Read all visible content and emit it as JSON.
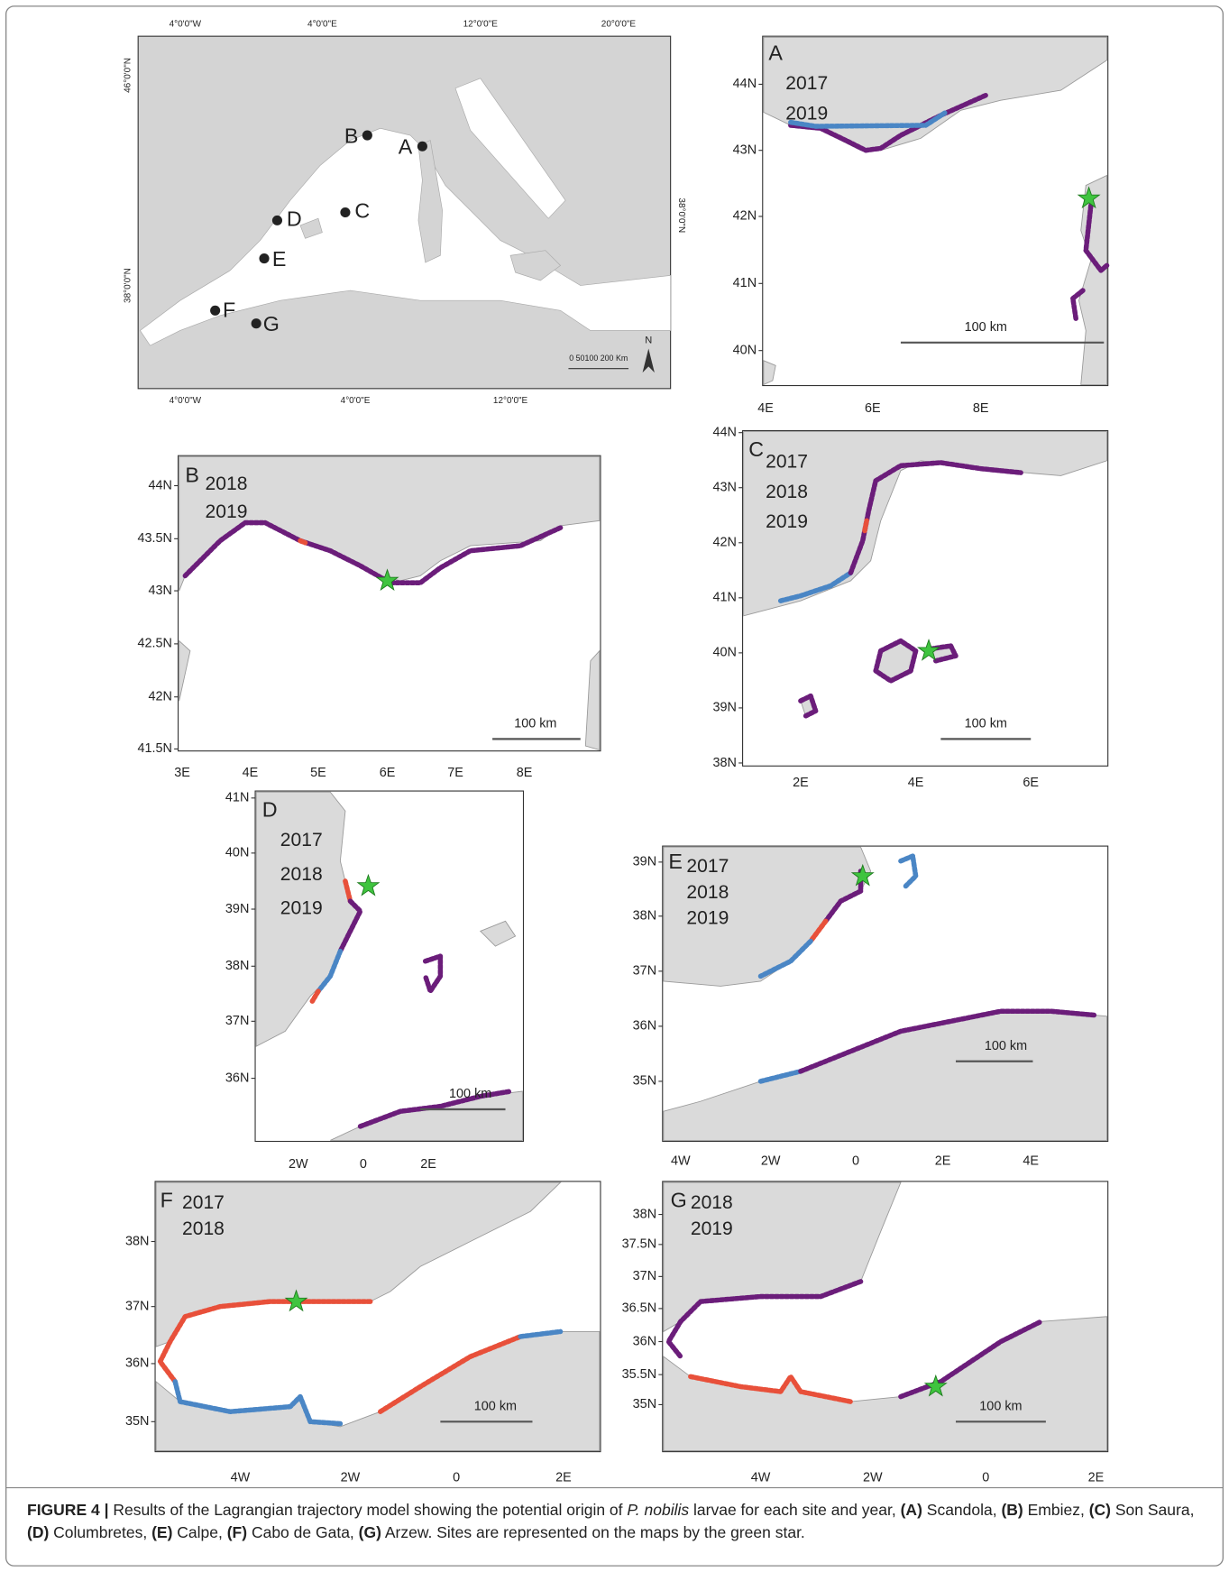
{
  "overview_map": {
    "top_labels": [
      "4°0'0\"W",
      "4°0'0\"E",
      "12°0'0\"E",
      "20°0'0\"E"
    ],
    "bottom_labels": [
      "4°0'0\"W",
      "4°0'0\"E",
      "12°0'0\"E"
    ],
    "left_labels": [
      "46°0'0\"N",
      "38°0'0\"N"
    ],
    "right_labels": [
      "38°0'0\"N"
    ],
    "sites": [
      "A",
      "B",
      "C",
      "D",
      "E",
      "F",
      "G"
    ],
    "scale_bar": "0 50100   200 Km",
    "north": "N"
  },
  "panels": [
    {
      "letter": "A",
      "legend": [
        {
          "year": "2017",
          "color": "#4a86c5"
        },
        {
          "year": "2019",
          "color": "#6b1d7a"
        }
      ],
      "yticks": [
        "44N",
        "43N",
        "42N",
        "41N",
        "40N"
      ],
      "xticks": [
        "4E",
        "6E",
        "8E"
      ],
      "scale_bar": "100 km"
    },
    {
      "letter": "B",
      "legend": [
        {
          "year": "2018",
          "color": "#e8503a"
        },
        {
          "year": "2019",
          "color": "#6b1d7a"
        }
      ],
      "yticks": [
        "44N",
        "43.5N",
        "43N",
        "42.5N",
        "42N",
        "41.5N"
      ],
      "xticks": [
        "3E",
        "4E",
        "5E",
        "6E",
        "7E",
        "8E"
      ],
      "scale_bar": "100 km"
    },
    {
      "letter": "C",
      "legend": [
        {
          "year": "2017",
          "color": "#4a86c5"
        },
        {
          "year": "2018",
          "color": "#e8503a"
        },
        {
          "year": "2019",
          "color": "#6b1d7a"
        }
      ],
      "yticks": [
        "44N",
        "43N",
        "42N",
        "41N",
        "40N",
        "39N",
        "38N"
      ],
      "xticks": [
        "2E",
        "4E",
        "6E"
      ],
      "scale_bar": "100 km"
    },
    {
      "letter": "D",
      "legend": [
        {
          "year": "2017",
          "color": "#4a86c5"
        },
        {
          "year": "2018",
          "color": "#e8503a"
        },
        {
          "year": "2019",
          "color": "#6b1d7a"
        }
      ],
      "yticks": [
        "41N",
        "40N",
        "39N",
        "38N",
        "37N",
        "36N"
      ],
      "xticks": [
        "2W",
        "0",
        "2E"
      ],
      "scale_bar": "100 km"
    },
    {
      "letter": "E",
      "legend": [
        {
          "year": "2017",
          "color": "#4a86c5"
        },
        {
          "year": "2018",
          "color": "#e8503a"
        },
        {
          "year": "2019",
          "color": "#6b1d7a"
        }
      ],
      "yticks": [
        "39N",
        "38N",
        "37N",
        "36N",
        "35N"
      ],
      "xticks": [
        "4W",
        "2W",
        "0",
        "2E",
        "4E"
      ],
      "scale_bar": "100 km"
    },
    {
      "letter": "F",
      "legend": [
        {
          "year": "2017",
          "color": "#4a86c5"
        },
        {
          "year": "2018",
          "color": "#e8503a"
        }
      ],
      "yticks": [
        "38N",
        "37N",
        "36N",
        "35N"
      ],
      "xticks": [
        "4W",
        "2W",
        "0",
        "2E"
      ],
      "scale_bar": "100 km"
    },
    {
      "letter": "G",
      "legend": [
        {
          "year": "2018",
          "color": "#e8503a"
        },
        {
          "year": "2019",
          "color": "#6b1d7a"
        }
      ],
      "yticks": [
        "38N",
        "37.5N",
        "37N",
        "36.5N",
        "36N",
        "35.5N",
        "35N"
      ],
      "xticks": [
        "4W",
        "2W",
        "0",
        "2E"
      ],
      "scale_bar": "100 km"
    }
  ],
  "caption": [
    "FIGURE 4 |",
    " Results of the Lagrangian trajectory model showing the potential origin of ",
    "P. nobilis",
    " larvae for each site and year, ",
    "(A)",
    " Scandola, ",
    "(B)",
    " Embiez, ",
    "(C)",
    " Son Saura, ",
    "(D)",
    " Columbretes, ",
    "(E)",
    " Calpe, ",
    "(F)",
    " Cabo de Gata, ",
    "(G)",
    " Arzew. Sites are represented on the maps by the green star."
  ]
}
